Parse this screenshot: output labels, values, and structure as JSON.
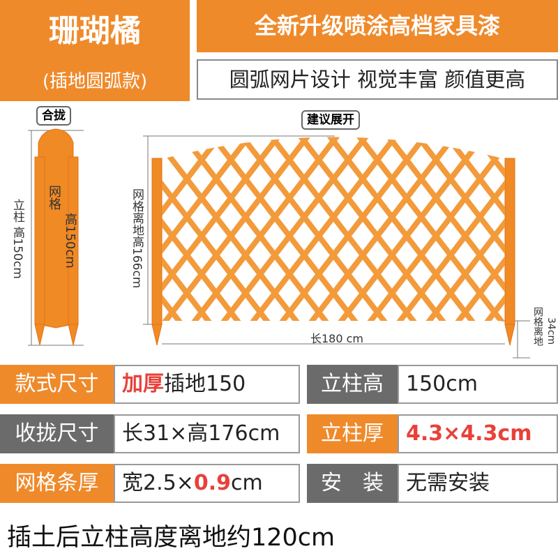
{
  "header": {
    "title": "珊瑚橘",
    "subtitle": "(插地圆弧款)",
    "slogan": "全新升级喷涂高档家具漆",
    "tagline": "圆弧网片设计 视觉丰富 颜值更高"
  },
  "diagram": {
    "folded_label": "合拢",
    "expanded_label": "建议展开",
    "post_height": "立柱 高150cm",
    "grid_label": "网格",
    "grid_height": "高150cm",
    "grid_clearance": "网格离地高166cm",
    "length": "长180 cm",
    "ground_gap": "34cm",
    "ground_gap_label": "网格离地"
  },
  "specs": [
    {
      "label": "款式尺寸",
      "label_color": "#ef8a2b",
      "value": [
        {
          "text": "加厚",
          "emphasis": true
        },
        {
          "text": "插地150",
          "emphasis": false
        }
      ]
    },
    {
      "label": "立柱高",
      "label_color": "#6b6b6b",
      "value": [
        {
          "text": "150cm",
          "emphasis": false
        }
      ]
    },
    {
      "label": "收拢尺寸",
      "label_color": "#6b6b6b",
      "value": [
        {
          "text": "长31×高176cm",
          "emphasis": false
        }
      ]
    },
    {
      "label": "立柱厚",
      "label_color": "#ef8a2b",
      "value": [
        {
          "text": "4.3×4.3cm",
          "emphasis": true
        }
      ]
    },
    {
      "label": "网格条厚",
      "label_color": "#ef8a2b",
      "value": [
        {
          "text": "宽2.5×",
          "emphasis": false
        },
        {
          "text": "0.9",
          "emphasis": true
        },
        {
          "text": "cm",
          "emphasis": false
        }
      ]
    },
    {
      "label": "安　装",
      "label_color": "#6b6b6b",
      "value": [
        {
          "text": "无需安装",
          "emphasis": false
        }
      ]
    }
  ],
  "footer": {
    "note": "插土后立柱高度离地约120cm"
  }
}
